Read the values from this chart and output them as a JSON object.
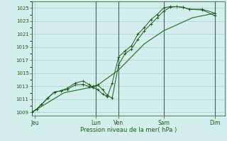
{
  "bg_color": "#d4eeed",
  "grid_color": "#a8d0cc",
  "line_color_dark": "#1a5c1a",
  "line_color_mid": "#2d7a2d",
  "ylim": [
    1008.5,
    1026.0
  ],
  "yticks": [
    1009,
    1011,
    1013,
    1015,
    1017,
    1019,
    1021,
    1023,
    1025
  ],
  "xlabel": "Pression niveau de la mer( hPa )",
  "vlines": [
    0.0,
    40.0,
    54.0,
    82.0,
    114.0
  ],
  "xlim": [
    0,
    120
  ],
  "xtick_positions": [
    2,
    40,
    54,
    82,
    114
  ],
  "xtick_labels": [
    "Jeu",
    "Lun",
    "Ven",
    "Sam",
    "Dim"
  ],
  "series1_x": [
    0,
    3,
    6,
    10,
    14,
    18,
    22,
    27,
    32,
    36,
    38,
    41,
    44,
    47,
    50,
    54,
    58,
    62,
    66,
    70,
    74,
    78,
    82,
    86,
    90,
    94,
    98,
    106,
    114
  ],
  "series1_y": [
    1009,
    1009.5,
    1010.2,
    1011.2,
    1012.1,
    1012.3,
    1012.5,
    1013.2,
    1013.3,
    1012.9,
    1013.0,
    1013.2,
    1012.5,
    1011.6,
    1011.2,
    1016.3,
    1018.0,
    1018.7,
    1020.2,
    1021.5,
    1022.5,
    1023.5,
    1024.5,
    1025.1,
    1025.2,
    1025.1,
    1024.8,
    1024.8,
    1024.2
  ],
  "series2_x": [
    0,
    3,
    6,
    10,
    14,
    18,
    22,
    27,
    32,
    36,
    38,
    41,
    44,
    47,
    50,
    54,
    58,
    62,
    66,
    70,
    74,
    78,
    82,
    86,
    90,
    94,
    98,
    106,
    114
  ],
  "series2_y": [
    1009,
    1009.5,
    1010.2,
    1011.2,
    1012.1,
    1012.3,
    1012.7,
    1013.5,
    1013.8,
    1013.2,
    1012.8,
    1012.5,
    1011.8,
    1011.4,
    1013.5,
    1017.5,
    1018.4,
    1019.2,
    1021.0,
    1022.0,
    1023.2,
    1024.0,
    1025.0,
    1025.2,
    1025.2,
    1025.1,
    1024.8,
    1024.7,
    1023.8
  ],
  "series3_x": [
    0,
    20,
    40,
    54,
    70,
    82,
    100,
    114
  ],
  "series3_y": [
    1009,
    1012.0,
    1013.0,
    1015.5,
    1019.5,
    1021.5,
    1023.5,
    1024.2
  ]
}
